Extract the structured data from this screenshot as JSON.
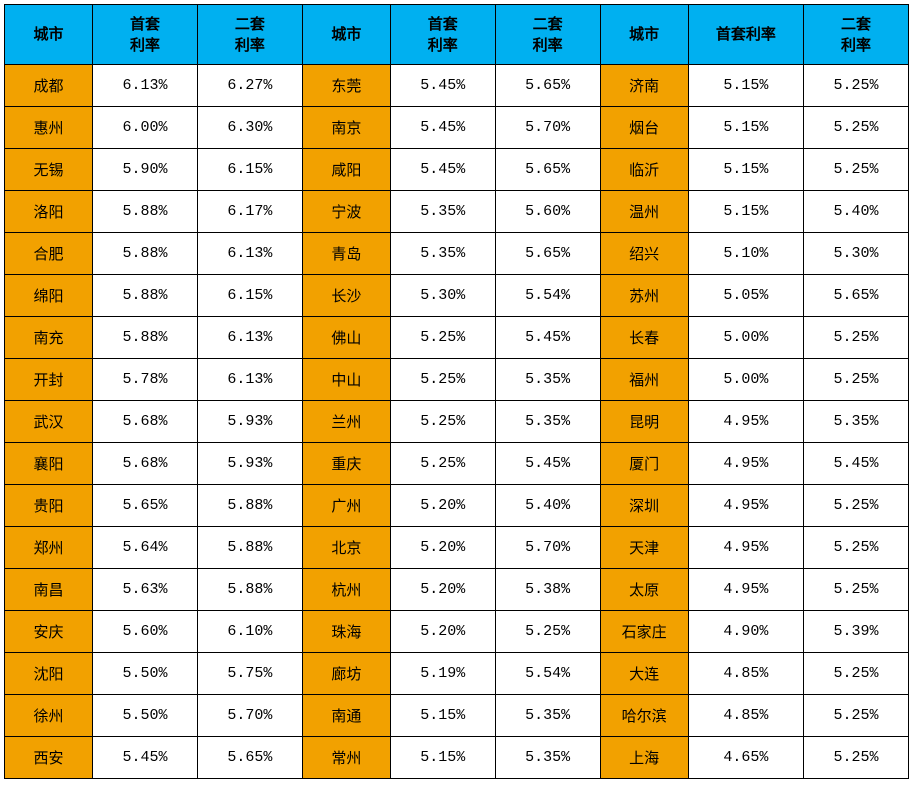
{
  "colors": {
    "header_bg": "#00b0f0",
    "city_bg": "#f2a100",
    "rate_bg": "#ffffff",
    "border": "#000000",
    "text": "#000000"
  },
  "headers": {
    "city": "城市",
    "first_rate_l1": "首套",
    "first_rate_l2": "利率",
    "second_rate_l1": "二套",
    "second_rate_l2": "利率",
    "first_rate_single": "首套利率"
  },
  "blocks": [
    {
      "rows": [
        {
          "city": "成都",
          "first": "6.13%",
          "second": "6.27%"
        },
        {
          "city": "惠州",
          "first": "6.00%",
          "second": "6.30%"
        },
        {
          "city": "无锡",
          "first": "5.90%",
          "second": "6.15%"
        },
        {
          "city": "洛阳",
          "first": "5.88%",
          "second": "6.17%"
        },
        {
          "city": "合肥",
          "first": "5.88%",
          "second": "6.13%"
        },
        {
          "city": "绵阳",
          "first": "5.88%",
          "second": "6.15%"
        },
        {
          "city": "南充",
          "first": "5.88%",
          "second": "6.13%"
        },
        {
          "city": "开封",
          "first": "5.78%",
          "second": "6.13%"
        },
        {
          "city": "武汉",
          "first": "5.68%",
          "second": "5.93%"
        },
        {
          "city": "襄阳",
          "first": "5.68%",
          "second": "5.93%"
        },
        {
          "city": "贵阳",
          "first": "5.65%",
          "second": "5.88%"
        },
        {
          "city": "郑州",
          "first": "5.64%",
          "second": "5.88%"
        },
        {
          "city": "南昌",
          "first": "5.63%",
          "second": "5.88%"
        },
        {
          "city": "安庆",
          "first": "5.60%",
          "second": "6.10%"
        },
        {
          "city": "沈阳",
          "first": "5.50%",
          "second": "5.75%"
        },
        {
          "city": "徐州",
          "first": "5.50%",
          "second": "5.70%"
        },
        {
          "city": "西安",
          "first": "5.45%",
          "second": "5.65%"
        }
      ]
    },
    {
      "rows": [
        {
          "city": "东莞",
          "first": "5.45%",
          "second": "5.65%"
        },
        {
          "city": "南京",
          "first": "5.45%",
          "second": "5.70%"
        },
        {
          "city": "咸阳",
          "first": "5.45%",
          "second": "5.65%"
        },
        {
          "city": "宁波",
          "first": "5.35%",
          "second": "5.60%"
        },
        {
          "city": "青岛",
          "first": "5.35%",
          "second": "5.65%"
        },
        {
          "city": "长沙",
          "first": "5.30%",
          "second": "5.54%"
        },
        {
          "city": "佛山",
          "first": "5.25%",
          "second": "5.45%"
        },
        {
          "city": "中山",
          "first": "5.25%",
          "second": "5.35%"
        },
        {
          "city": "兰州",
          "first": "5.25%",
          "second": "5.35%"
        },
        {
          "city": "重庆",
          "first": "5.25%",
          "second": "5.45%"
        },
        {
          "city": "广州",
          "first": "5.20%",
          "second": "5.40%"
        },
        {
          "city": "北京",
          "first": "5.20%",
          "second": "5.70%"
        },
        {
          "city": "杭州",
          "first": "5.20%",
          "second": "5.38%"
        },
        {
          "city": "珠海",
          "first": "5.20%",
          "second": "5.25%"
        },
        {
          "city": "廊坊",
          "first": "5.19%",
          "second": "5.54%"
        },
        {
          "city": "南通",
          "first": "5.15%",
          "second": "5.35%"
        },
        {
          "city": "常州",
          "first": "5.15%",
          "second": "5.35%"
        }
      ]
    },
    {
      "rows": [
        {
          "city": "济南",
          "first": "5.15%",
          "second": "5.25%"
        },
        {
          "city": "烟台",
          "first": "5.15%",
          "second": "5.25%"
        },
        {
          "city": "临沂",
          "first": "5.15%",
          "second": "5.25%"
        },
        {
          "city": "温州",
          "first": "5.15%",
          "second": "5.40%"
        },
        {
          "city": "绍兴",
          "first": "5.10%",
          "second": "5.30%"
        },
        {
          "city": "苏州",
          "first": "5.05%",
          "second": "5.65%"
        },
        {
          "city": "长春",
          "first": "5.00%",
          "second": "5.25%"
        },
        {
          "city": "福州",
          "first": "5.00%",
          "second": "5.25%"
        },
        {
          "city": "昆明",
          "first": "4.95%",
          "second": "5.35%"
        },
        {
          "city": "厦门",
          "first": "4.95%",
          "second": "5.45%"
        },
        {
          "city": "深圳",
          "first": "4.95%",
          "second": "5.25%"
        },
        {
          "city": "天津",
          "first": "4.95%",
          "second": "5.25%"
        },
        {
          "city": "太原",
          "first": "4.95%",
          "second": "5.25%"
        },
        {
          "city": "石家庄",
          "first": "4.90%",
          "second": "5.39%"
        },
        {
          "city": "大连",
          "first": "4.85%",
          "second": "5.25%"
        },
        {
          "city": "哈尔滨",
          "first": "4.85%",
          "second": "5.25%"
        },
        {
          "city": "上海",
          "first": "4.65%",
          "second": "5.25%"
        }
      ]
    }
  ]
}
